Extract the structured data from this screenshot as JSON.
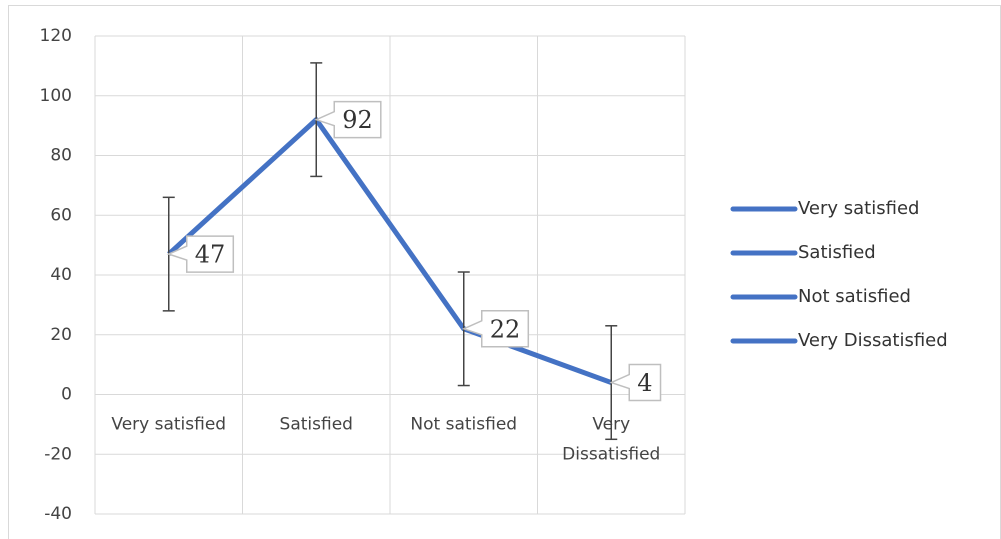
{
  "chart_data": {
    "type": "line",
    "categories": [
      "Very satisfied",
      "Satisfied",
      "Not satisfied",
      "Very Dissatisfied"
    ],
    "series": [
      {
        "color": "#4472c4",
        "values": [
          47,
          92,
          22,
          4
        ],
        "errors": [
          19,
          19,
          19,
          19
        ]
      }
    ],
    "ylim": [
      -40,
      120
    ],
    "yticks": [
      -40,
      -20,
      0,
      20,
      40,
      60,
      80,
      100,
      120
    ],
    "grid": true,
    "data_labels": true,
    "legend": "right"
  }
}
